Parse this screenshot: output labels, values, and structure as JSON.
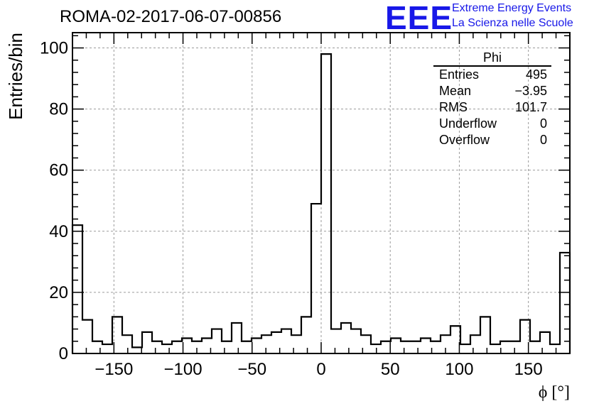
{
  "title": "ROMA-02-2017-06-07-00856",
  "logo": {
    "mark": "EEE",
    "line1": "Extreme Energy Events",
    "line2": "La Scienza nelle Scuole",
    "color": "#1818e8"
  },
  "stats": {
    "title": "Phi",
    "rows": [
      {
        "label": "Entries",
        "value": "495"
      },
      {
        "label": "Mean",
        "value": "−3.95"
      },
      {
        "label": "RMS",
        "value": "101.7"
      },
      {
        "label": "Underflow",
        "value": "0"
      },
      {
        "label": "Overflow",
        "value": "0"
      }
    ]
  },
  "chart_data": {
    "type": "histogram",
    "title": "ROMA-02-2017-06-07-00856",
    "xlabel": "ϕ [°]",
    "ylabel": "Entries/bin",
    "xlim": [
      -180,
      180
    ],
    "ylim": [
      0,
      105
    ],
    "bin_width": 7.2,
    "bin_edges_start": -180,
    "values": [
      42,
      11,
      4,
      3,
      12,
      6,
      2,
      7,
      4,
      3,
      4,
      5,
      4,
      5,
      8,
      4,
      10,
      4,
      5,
      6,
      7,
      8,
      6,
      12,
      49,
      98,
      8,
      10,
      8,
      6,
      3,
      4,
      5,
      4,
      4,
      5,
      4,
      6,
      9,
      3,
      6,
      12,
      3,
      4,
      4,
      11,
      4,
      7,
      3,
      33
    ],
    "x_ticks": [
      -150,
      -100,
      -50,
      0,
      50,
      100,
      150
    ],
    "x_tick_labels": [
      "−150",
      "−100",
      "−50",
      "0",
      "50",
      "100",
      "150"
    ],
    "y_ticks": [
      0,
      20,
      40,
      60,
      80,
      100
    ],
    "y_tick_labels": [
      "0",
      "20",
      "40",
      "60",
      "80",
      "100"
    ],
    "grid": true,
    "line_color": "#000000"
  }
}
